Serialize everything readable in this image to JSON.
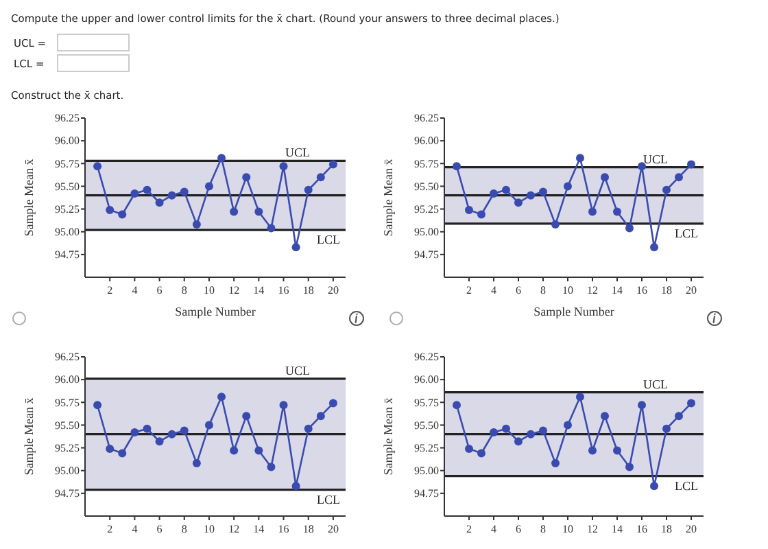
{
  "chart_data": [
    {
      "type": "line",
      "annotations": [
        "Compute the upper and lower control limits for the x̄ chart. (Round your answers to three decimal places.)",
        "UCL =",
        "LCL =",
        "Construct the x̄ chart."
      ],
      "xlabel": "Sample Number",
      "ylabel": "Sample Mean x̄",
      "x": [
        1,
        2,
        3,
        4,
        5,
        6,
        7,
        8,
        9,
        10,
        11,
        12,
        13,
        14,
        15,
        16,
        17,
        18,
        19,
        20
      ],
      "values": [
        95.72,
        95.24,
        95.19,
        95.42,
        95.46,
        95.32,
        95.4,
        95.44,
        95.08,
        95.5,
        95.81,
        95.22,
        95.6,
        95.22,
        95.04,
        95.72,
        94.83,
        95.46,
        95.6,
        95.74
      ],
      "color": "#3a4bb0",
      "marker": "circle",
      "xlim": [
        0,
        21
      ],
      "xticks": [
        2,
        4,
        6,
        8,
        10,
        12,
        14,
        16,
        18,
        20
      ],
      "ylim": [
        94.5,
        96.25
      ],
      "yticks": [
        94.75,
        {
          "value": 95,
          "label": "95.00"
        },
        95.25,
        {
          "value": 95.5,
          "label": "95.50"
        },
        95.75,
        {
          "value": 96,
          "label": "96.00"
        },
        96.25
      ],
      "bands": [
        {
          "axis": "y",
          "from": 95.02,
          "to": 95.78,
          "color": "#d9d9e8"
        }
      ],
      "ref_lines": [
        {
          "axis": "y",
          "value": 95.78,
          "label": "UCL",
          "color": "#222222"
        },
        {
          "axis": "y",
          "value": 95.4,
          "color": "#222222"
        },
        {
          "axis": "y",
          "value": 95.02,
          "label": "LCL",
          "color": "#222222"
        }
      ]
    },
    {
      "type": "line",
      "xlabel": "Sample Number",
      "ylabel": "Sample Mean x̄",
      "x": [
        1,
        2,
        3,
        4,
        5,
        6,
        7,
        8,
        9,
        10,
        11,
        12,
        13,
        14,
        15,
        16,
        17,
        18,
        19,
        20
      ],
      "values": [
        95.72,
        95.24,
        95.19,
        95.42,
        95.46,
        95.32,
        95.4,
        95.44,
        95.08,
        95.5,
        95.81,
        95.22,
        95.6,
        95.22,
        95.04,
        95.72,
        94.83,
        95.46,
        95.6,
        95.74
      ],
      "color": "#3a4bb0",
      "marker": "circle",
      "xlim": [
        0,
        21
      ],
      "xticks": [
        2,
        4,
        6,
        8,
        10,
        12,
        14,
        16,
        18,
        20
      ],
      "ylim": [
        94.5,
        96.25
      ],
      "yticks": [
        94.75,
        {
          "value": 95,
          "label": "95.00"
        },
        95.25,
        {
          "value": 95.5,
          "label": "95.50"
        },
        95.75,
        {
          "value": 96,
          "label": "96.00"
        },
        96.25
      ],
      "bands": [
        {
          "axis": "y",
          "from": 95.09,
          "to": 95.71,
          "color": "#d9d9e8"
        }
      ],
      "ref_lines": [
        {
          "axis": "y",
          "value": 95.71,
          "label": "UCL",
          "color": "#222222"
        },
        {
          "axis": "y",
          "value": 95.4,
          "color": "#222222"
        },
        {
          "axis": "y",
          "value": 95.09,
          "label": "LCL",
          "color": "#222222"
        }
      ]
    },
    {
      "type": "line",
      "ylabel": "Sample Mean x̄",
      "x": [
        1,
        2,
        3,
        4,
        5,
        6,
        7,
        8,
        9,
        10,
        11,
        12,
        13,
        14,
        15,
        16,
        17,
        18,
        19,
        20
      ],
      "values": [
        95.72,
        95.24,
        95.19,
        95.42,
        95.46,
        95.32,
        95.4,
        95.44,
        95.08,
        95.5,
        95.81,
        95.22,
        95.6,
        95.22,
        95.04,
        95.72,
        94.83,
        95.46,
        95.6,
        95.74
      ],
      "color": "#3a4bb0",
      "marker": "circle",
      "xlim": [
        0,
        21
      ],
      "xticks": [
        2,
        4,
        6,
        8,
        10,
        12,
        14,
        16,
        18,
        20
      ],
      "ylim": [
        94.5,
        96.25
      ],
      "yticks": [
        94.75,
        {
          "value": 95,
          "label": "95.00"
        },
        95.25,
        {
          "value": 95.5,
          "label": "95.50"
        },
        95.75,
        {
          "value": 96,
          "label": "96.00"
        },
        96.25
      ],
      "bands": [
        {
          "axis": "y",
          "from": 94.79,
          "to": 96.01,
          "color": "#d9d9e8"
        }
      ],
      "ref_lines": [
        {
          "axis": "y",
          "value": 96.01,
          "label": "UCL",
          "color": "#222222"
        },
        {
          "axis": "y",
          "value": 95.4,
          "color": "#222222"
        },
        {
          "axis": "y",
          "value": 94.79,
          "label": "LCL",
          "color": "#222222"
        }
      ]
    },
    {
      "type": "line",
      "ylabel": "Sample Mean x̄",
      "x": [
        1,
        2,
        3,
        4,
        5,
        6,
        7,
        8,
        9,
        10,
        11,
        12,
        13,
        14,
        15,
        16,
        17,
        18,
        19,
        20
      ],
      "values": [
        95.72,
        95.24,
        95.19,
        95.42,
        95.46,
        95.32,
        95.4,
        95.44,
        95.08,
        95.5,
        95.81,
        95.22,
        95.6,
        95.22,
        95.04,
        95.72,
        94.83,
        95.46,
        95.6,
        95.74
      ],
      "color": "#3a4bb0",
      "marker": "circle",
      "xlim": [
        0,
        21
      ],
      "xticks": [
        2,
        4,
        6,
        8,
        10,
        12,
        14,
        16,
        18,
        20
      ],
      "ylim": [
        94.5,
        96.25
      ],
      "yticks": [
        94.75,
        {
          "value": 95,
          "label": "95.00"
        },
        95.25,
        {
          "value": 95.5,
          "label": "95.50"
        },
        95.75,
        {
          "value": 96,
          "label": "96.00"
        },
        96.25
      ],
      "bands": [
        {
          "axis": "y",
          "from": 94.94,
          "to": 95.86,
          "color": "#d9d9e8"
        }
      ],
      "ref_lines": [
        {
          "axis": "y",
          "value": 95.86,
          "label": "UCL",
          "color": "#222222"
        },
        {
          "axis": "y",
          "value": 95.4,
          "color": "#222222"
        },
        {
          "axis": "y",
          "value": 94.94,
          "label": "LCL",
          "color": "#222222"
        }
      ]
    }
  ]
}
